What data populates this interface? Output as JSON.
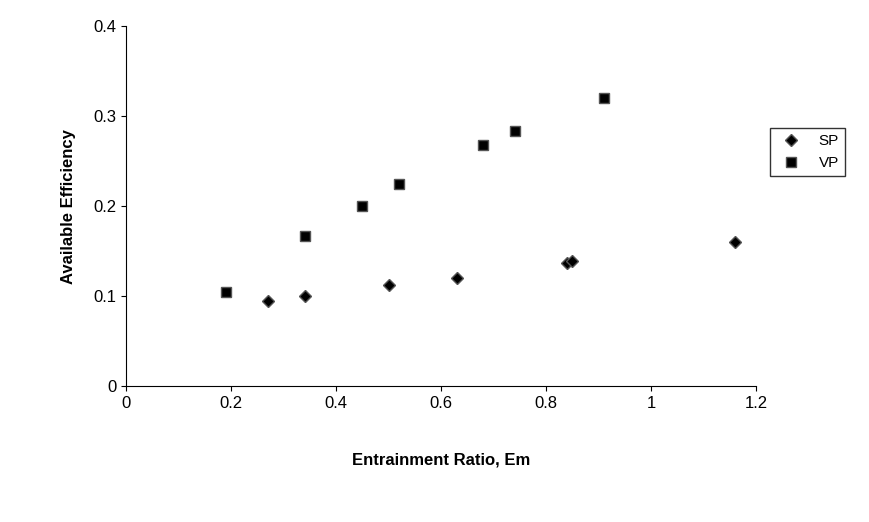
{
  "chart_data": {
    "type": "scatter",
    "x_label": "Entrainment Ratio, Em",
    "y_label": "Available Efficiency",
    "series": [
      {
        "name": "SP",
        "color": "#000000",
        "marker": "diamond",
        "x": [
          0.27,
          0.34,
          0.5,
          0.63,
          0.84,
          0.85,
          1.16
        ],
        "values": [
          0.095,
          0.1,
          0.112,
          0.12,
          0.137,
          0.139,
          0.16
        ]
      },
      {
        "name": "VP",
        "color": "#000000",
        "marker": "square",
        "x": [
          0.19,
          0.34,
          0.45,
          0.52,
          0.68,
          0.74,
          0.91
        ],
        "values": [
          0.105,
          0.167,
          0.2,
          0.225,
          0.268,
          0.283,
          0.32
        ]
      }
    ],
    "xlim": [
      0,
      1.2
    ],
    "xticks": [
      0,
      0.2,
      0.4,
      0.6,
      0.8,
      1,
      1.2
    ],
    "ylim": [
      0,
      0.4
    ],
    "yticks": [
      0,
      0.1,
      0.2,
      0.3,
      0.4
    ],
    "grid": false,
    "legend": "center left"
  }
}
